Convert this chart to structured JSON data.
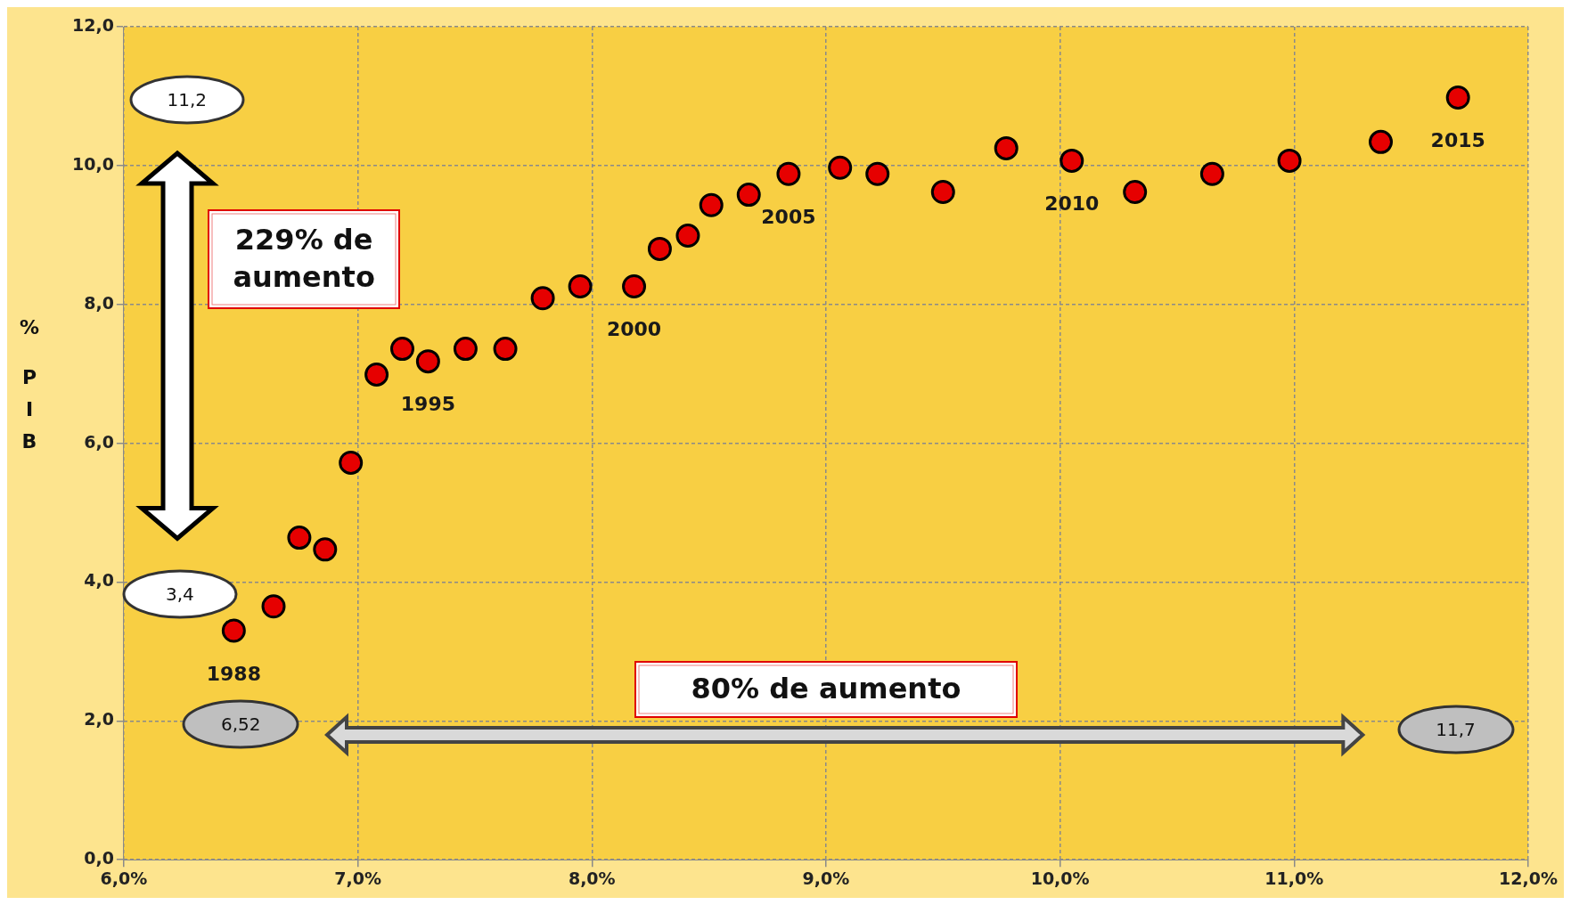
{
  "chart_data": {
    "type": "scatter",
    "ylabel": "% PIB",
    "x": [
      6.47,
      6.64,
      6.75,
      6.86,
      6.97,
      7.08,
      7.19,
      7.3,
      7.46,
      7.63,
      7.79,
      7.95,
      8.18,
      8.29,
      8.41,
      8.51,
      8.67,
      8.84,
      9.06,
      9.22,
      9.5,
      9.77,
      10.05,
      10.32,
      10.65,
      10.98,
      11.37,
      11.7
    ],
    "series": [
      {
        "color": "#e60000",
        "values": [
          3.3,
          3.65,
          4.64,
          4.47,
          5.72,
          6.99,
          7.36,
          7.18,
          7.36,
          7.36,
          8.09,
          8.26,
          8.26,
          8.8,
          8.99,
          9.43,
          9.58,
          9.88,
          9.97,
          9.88,
          9.62,
          10.25,
          10.07,
          9.62,
          9.88,
          10.07,
          10.34,
          10.98
        ]
      }
    ],
    "xlim": [
      6,
      12
    ],
    "xticks": [
      {
        "value": 6,
        "label": "6,0%"
      },
      {
        "value": 7,
        "label": "7,0%"
      },
      {
        "value": 8,
        "label": "8,0%"
      },
      {
        "value": 9,
        "label": "9,0%"
      },
      {
        "value": 10,
        "label": "10,0%"
      },
      {
        "value": 11,
        "label": "11,0%"
      },
      {
        "value": 12,
        "label": "12,0%"
      }
    ],
    "ylim": [
      0,
      12
    ],
    "yticks": [
      {
        "value": 0,
        "label": "0,0"
      },
      {
        "value": 2,
        "label": "2,0"
      },
      {
        "value": 4,
        "label": "4,0"
      },
      {
        "value": 6,
        "label": "6,0"
      },
      {
        "value": 8,
        "label": "8,0"
      },
      {
        "value": 10,
        "label": "10,0"
      },
      {
        "value": 12,
        "label": "12,0"
      }
    ],
    "grid": true,
    "legend": false,
    "marker": "circle",
    "annotations": [
      {
        "text": "1988",
        "x": 6.47,
        "y": 3.3
      },
      {
        "text": "1995",
        "x": 7.3,
        "y": 7.18
      },
      {
        "text": "2000",
        "x": 8.18,
        "y": 8.26
      },
      {
        "text": "2005",
        "x": 8.84,
        "y": 9.88
      },
      {
        "text": "2010",
        "x": 10.05,
        "y": 10.07
      },
      {
        "text": "2015",
        "x": 11.7,
        "y": 10.98
      },
      "11,2",
      "3,4",
      "6,52",
      "11,7",
      "229% de aumento",
      "80% de aumento"
    ]
  }
}
